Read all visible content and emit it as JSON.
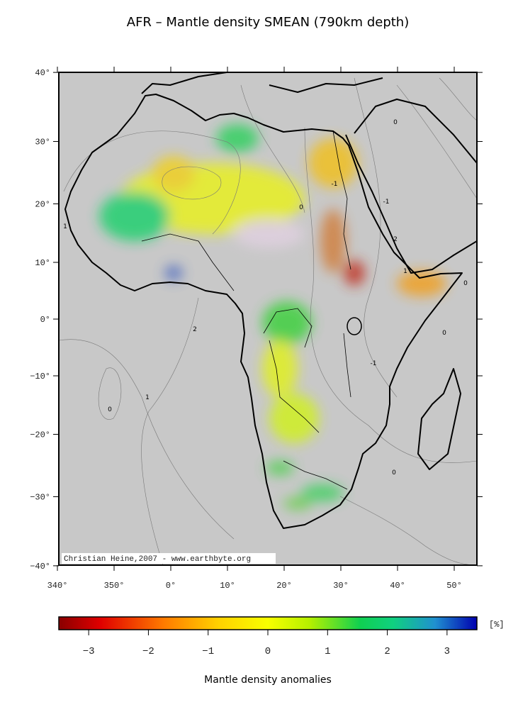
{
  "title": "AFR – Mantle density SMEAN (790km depth)",
  "lat_ticks": [
    {
      "value": 40,
      "label": "40°"
    },
    {
      "value": 30,
      "label": "30°"
    },
    {
      "value": 20,
      "label": "20°"
    },
    {
      "value": 10,
      "label": "10°"
    },
    {
      "value": 0,
      "label": "0°"
    },
    {
      "value": -10,
      "label": "−10°"
    },
    {
      "value": -20,
      "label": "−20°"
    },
    {
      "value": -30,
      "label": "−30°"
    },
    {
      "value": -40,
      "label": "−40°"
    }
  ],
  "lon_ticks": [
    {
      "value": 340,
      "label": "340°"
    },
    {
      "value": 350,
      "label": "350°"
    },
    {
      "value": 0,
      "label": "0°"
    },
    {
      "value": 10,
      "label": "10°"
    },
    {
      "value": 20,
      "label": "20°"
    },
    {
      "value": 30,
      "label": "30°"
    },
    {
      "value": 40,
      "label": "40°"
    },
    {
      "value": 50,
      "label": "50°"
    }
  ],
  "contour_labels": [
    "0",
    "-1",
    "0",
    "1",
    "-1",
    "2",
    "1",
    "2",
    "0",
    "0",
    "-1",
    "0",
    "1",
    "0"
  ],
  "credit": "Christian Heine,2007 - www.earthbyte.org",
  "colorbar": {
    "lim": [
      -3.5,
      3.5
    ],
    "ticks": [
      {
        "value": -3,
        "label": "−3"
      },
      {
        "value": -2,
        "label": "−2"
      },
      {
        "value": -1,
        "label": "−1"
      },
      0,
      1,
      2,
      3
    ],
    "unit": "[%]",
    "label": "Mantle density anomalies"
  }
}
